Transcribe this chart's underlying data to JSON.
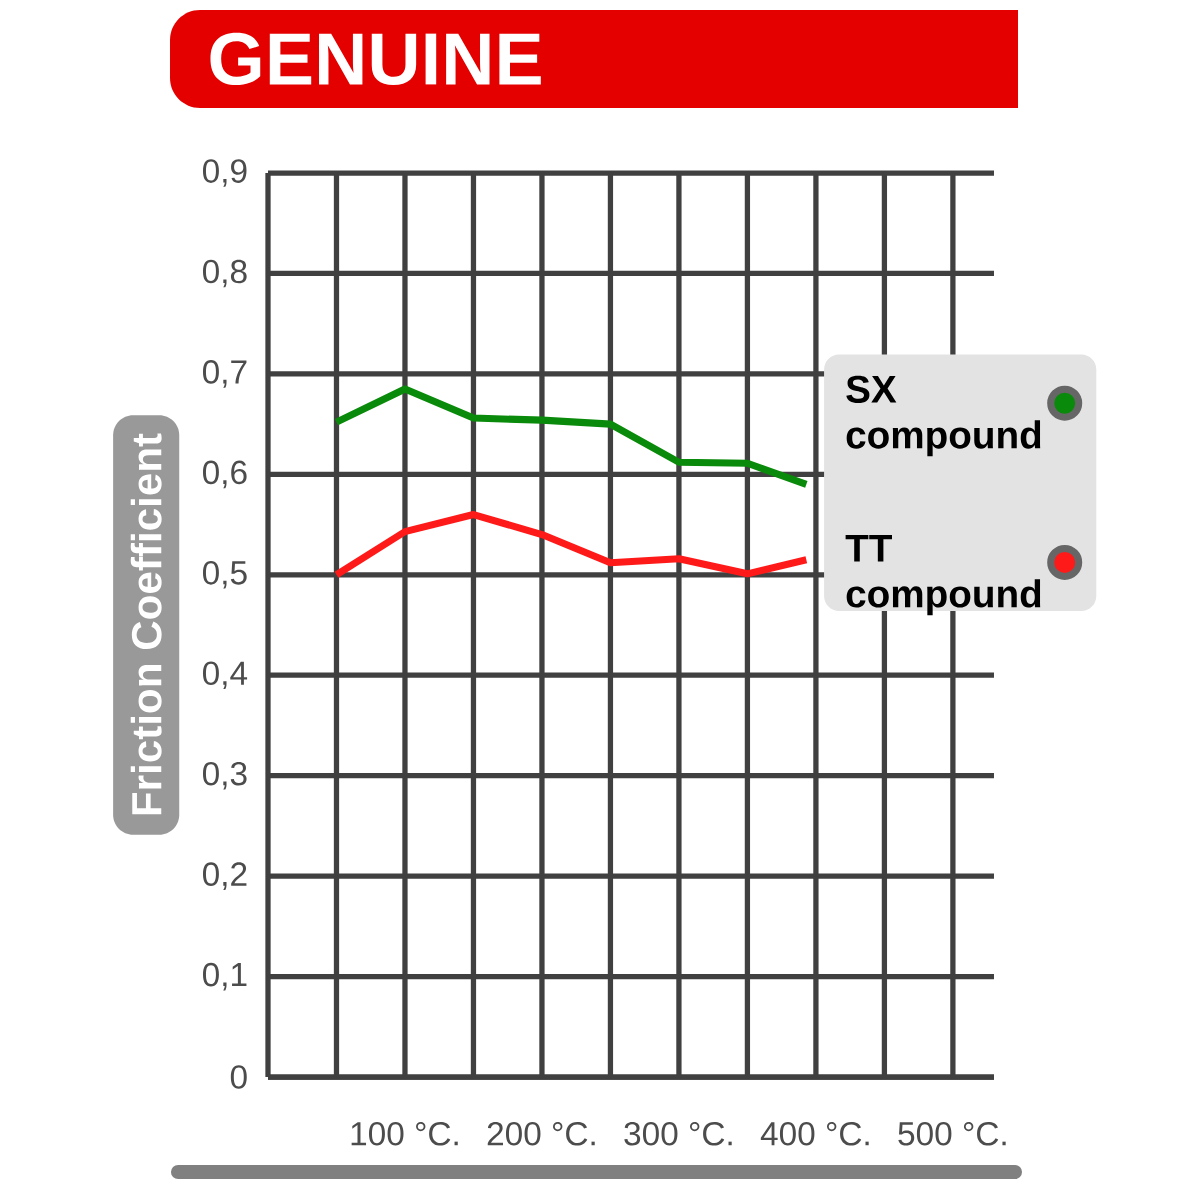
{
  "chart_data": {
    "type": "line",
    "title": "GENUINE",
    "ylabel": "Friction Coefficient",
    "x": [
      50,
      100,
      150,
      200,
      250,
      300,
      350,
      393
    ],
    "series": [
      {
        "name": "SX compound",
        "color": "#0a8a0a",
        "values": [
          0.652,
          0.685,
          0.656,
          0.654,
          0.65,
          0.612,
          0.611,
          0.59
        ]
      },
      {
        "name": "TT compound",
        "color": "#ff1a1a",
        "values": [
          0.5,
          0.543,
          0.56,
          0.54,
          0.512,
          0.516,
          0.501,
          0.515
        ]
      }
    ],
    "xlim": [
      0,
      530
    ],
    "xticks": [
      {
        "value": 50,
        "label": null
      },
      {
        "value": 100,
        "label": "100 °C."
      },
      {
        "value": 150,
        "label": null
      },
      {
        "value": 200,
        "label": "200 °C."
      },
      {
        "value": 250,
        "label": null
      },
      {
        "value": 300,
        "label": "300 °C."
      },
      {
        "value": 350,
        "label": null
      },
      {
        "value": 400,
        "label": "400 °C."
      },
      {
        "value": 450,
        "label": null
      },
      {
        "value": 500,
        "label": "500 °C."
      }
    ],
    "ylim": [
      0,
      0.9
    ],
    "yticks": [
      0,
      {
        "value": 0.1,
        "label": "0,1"
      },
      {
        "value": 0.2,
        "label": "0,2"
      },
      {
        "value": 0.3,
        "label": "0,3"
      },
      {
        "value": 0.4,
        "label": "0,4"
      },
      {
        "value": 0.5,
        "label": "0,5"
      },
      {
        "value": 0.6,
        "label": "0,6"
      },
      {
        "value": 0.7,
        "label": "0,7"
      },
      {
        "value": 0.8,
        "label": "0,8"
      },
      {
        "value": 0.9,
        "label": "0,9"
      }
    ],
    "grid": true,
    "legend": "right",
    "marker": "none",
    "line_style": "solid"
  }
}
